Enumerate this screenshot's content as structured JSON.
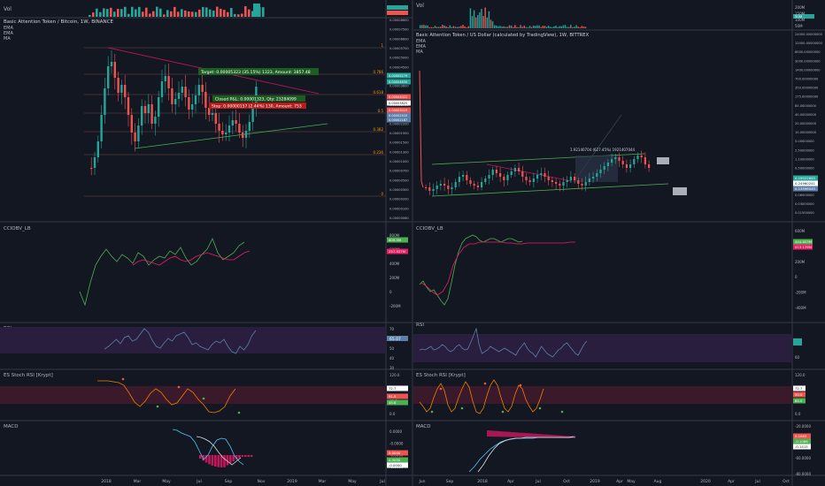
{
  "colors": {
    "bg": "#131722",
    "border": "#363a45",
    "text": "#b2b5be",
    "candle_up": "#26a69a",
    "candle_down": "#ef5350",
    "rsi_band": "#2a1e3f",
    "stoch_band": "#3a1a2a",
    "trend_red": "#c2185b",
    "trend_green": "#4caf50",
    "macd_line": "#4fc3f7",
    "signal_line": "#e0e0e0",
    "hist": "#c2185b"
  },
  "left": {
    "vol_label": "Vol",
    "title": "Basic Attention Token / Bitcoin, 1W, BINANCE",
    "ema1": "EMA",
    "ema2": "EMA",
    "ma": "MA",
    "price_ticks": [
      "0.00008600",
      "0.00007500",
      "0.00006600",
      "0.00005700",
      "0.00005000",
      "0.00004500",
      "0.00004000",
      "0.00003600",
      "0.00003200",
      "0.00002900",
      "0.00002500",
      "0.00002200",
      "0.00001900",
      "0.00001500",
      "0.00001300",
      "0.00001000",
      "0.00000700",
      "0.00000500",
      "0.00000300",
      "0.00000200",
      "0.00000100",
      "0.00000060"
    ],
    "fib_labels": [
      "1",
      "0.786",
      "0.618",
      "0.5",
      "0.382",
      "0.236",
      "0"
    ],
    "long_box": "Target: 0.00005323 (35.15%) 1323, Amount: 3857.48",
    "position_box": "Closed P&L: 0.00001323, Qty: 23284099",
    "stop_box": "Stop: 0.00000157 (2.44%) 130, Amount: 753",
    "tags": [
      "0.00005279",
      "0.00004830",
      "0.00004021",
      "0.00003825",
      "0.00003023",
      "0.00002510",
      "0.00002187"
    ],
    "cco_label": "CCIOBV_LB",
    "cco_ticks": [
      "800M",
      "600M",
      "400M",
      "200M",
      "0",
      "-200M"
    ],
    "cco_tags": [
      "609.5M",
      "257.337M"
    ],
    "rsi_label": "RSI",
    "rsi_ticks": [
      "70",
      "60",
      "50",
      "40",
      "30"
    ],
    "rsi_tag": "65.07",
    "stoch_label": "ES Stoch RSI [Krypt]",
    "stoch_ticks": [
      "120.0",
      "80.0",
      "40.0",
      "0.0"
    ],
    "stoch_tags": [
      "72.7",
      "91.5",
      "45.8"
    ],
    "macd_label": "MACD",
    "macd_ticks": [
      "0.0000",
      "-0.0000",
      "-0.0000",
      "-0.0000"
    ],
    "macd_tags": [
      "0.0000",
      "0.0000",
      "-0.0000"
    ],
    "x_ticks": [
      "2018",
      "Mar",
      "May",
      "Jul",
      "Sep",
      "Nov",
      "2019",
      "Mar",
      "May",
      "Jul"
    ]
  },
  "right": {
    "vol_label": "Vol",
    "vol_ticks": [
      "200M",
      "150M",
      "100M",
      "50M"
    ],
    "vol_tag": "50M",
    "title": "Basic Attention Token / US Dollar (calculated by TradingView), 1W, BITTREX",
    "ema1": "EMA",
    "ema2": "EMA",
    "ma": "MA",
    "price_ticks": [
      "24000.00000000",
      "12000.00000000",
      "6000.00000000",
      "3000.00000000",
      "1400.00000000",
      "700.00000000",
      "350.00000000",
      "175.00000000",
      "85.00000000",
      "40.00000000",
      "20.00000000",
      "10.00000000",
      "5.00000000",
      "2.50000000",
      "1.10000000",
      "0.50000000",
      "0.25000000",
      "0.12000000",
      "0.06000000",
      "0.03000000",
      "0.01500000"
    ],
    "measure_text": "1.92140704 (627.45%) 1921407044",
    "tags": [
      "0.19022845",
      "0.24960241",
      "0.13596045"
    ],
    "cco_label": "CCIOBV_LB",
    "cco_ticks": [
      "600M",
      "400M",
      "200M",
      "0",
      "-200M",
      "-400M"
    ],
    "cco_tags": [
      "444.853M",
      "413.179M"
    ],
    "rsi_label": "RSI",
    "rsi_ticks": [
      "80",
      "60"
    ],
    "stoch_label": "ES Stoch RSI [Krypt]",
    "stoch_ticks": [
      "120.0",
      "80.0",
      "40.0",
      "0.0"
    ],
    "stoch_tags": [
      "72.7",
      "50.0",
      "65.0"
    ],
    "macd_label": "MACD",
    "macd_ticks": [
      "-20.0000",
      "-40.0000",
      "-60.0000",
      "-80.0000"
    ],
    "macd_tags": [
      "0.1663",
      "-0.1086",
      "-0.1415"
    ],
    "x_ticks": [
      "Jun",
      "Sep",
      "2018",
      "Apr",
      "Jul",
      "Oct",
      "2019",
      "Apr",
      "May",
      "Aug",
      "2020",
      "Apr",
      "Jul",
      "Oct"
    ]
  },
  "chart_data": [
    {
      "type": "line",
      "title": "Basic Attention Token / Bitcoin, 1W, BINANCE",
      "xlabel": "",
      "ylabel": "",
      "x": [
        "2018",
        "Mar",
        "May",
        "Jul",
        "Sep",
        "Nov"
      ],
      "series": [],
      "yscale": "log",
      "legend": "top-left"
    },
    {
      "type": "line",
      "title": "Basic Attention Token / US Dollar (calculated by TradingView), 1W, BITTREX",
      "xlabel": "",
      "ylabel": "",
      "x": [
        "Jun",
        "Sep",
        "2018",
        "Apr",
        "Jul",
        "Oct"
      ],
      "series": [],
      "yscale": "log",
      "legend": "top-left"
    }
  ]
}
